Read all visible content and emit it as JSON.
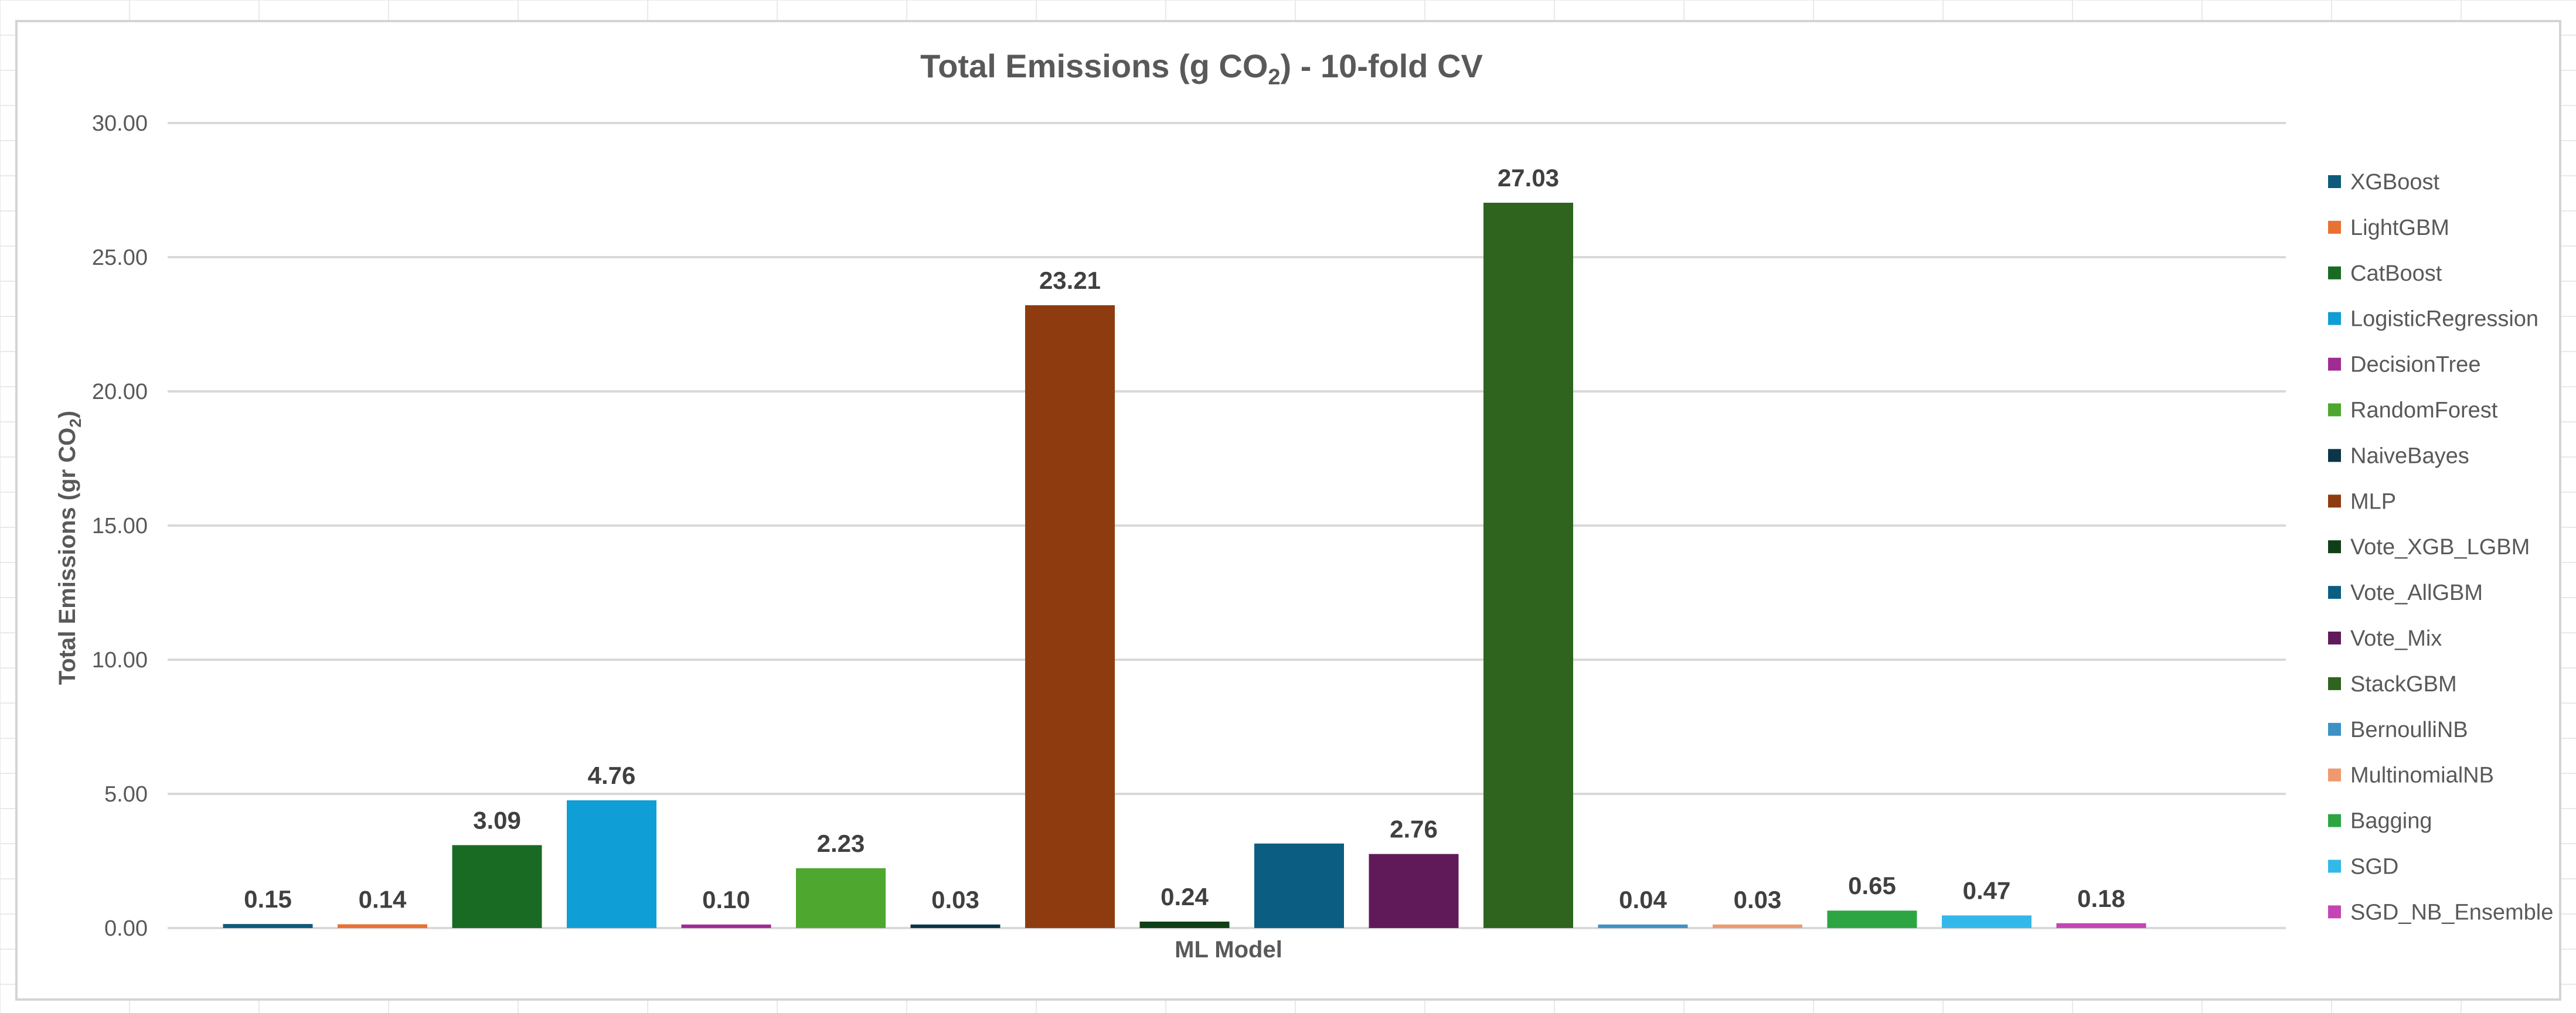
{
  "chart_data": {
    "type": "bar",
    "title": "Total Emissions (g CO",
    "title_subscript": "2",
    "title_suffix": ") - 10-fold CV",
    "xlabel": "ML Model",
    "ylabel": "Total Emissions (gr CO",
    "ylabel_subscript": "2",
    "ylabel_suffix": ")",
    "ylim": [
      0,
      30
    ],
    "yticks": [
      0,
      5,
      10,
      15,
      20,
      25,
      30
    ],
    "ytick_labels": [
      "0.00",
      "5.00",
      "10.00",
      "15.00",
      "20.00",
      "25.00",
      "30.00"
    ],
    "grid": true,
    "legend_position": "right",
    "series": [
      {
        "name": "XGBoost",
        "value": 0.15,
        "label": "0.15",
        "color": "#0f5a7c"
      },
      {
        "name": "LightGBM",
        "value": 0.14,
        "label": "0.14",
        "color": "#e97132"
      },
      {
        "name": "CatBoost",
        "value": 3.09,
        "label": "3.09",
        "color": "#196b24"
      },
      {
        "name": "LogisticRegression",
        "value": 4.76,
        "label": "4.76",
        "color": "#0f9ed5"
      },
      {
        "name": "DecisionTree",
        "value": 0.1,
        "label": "0.10",
        "color": "#a02b93"
      },
      {
        "name": "RandomForest",
        "value": 2.23,
        "label": "2.23",
        "color": "#4ea72e"
      },
      {
        "name": "NaiveBayes",
        "value": 0.03,
        "label": "0.03",
        "color": "#0b3548"
      },
      {
        "name": "MLP",
        "value": 23.21,
        "label": "23.21",
        "color": "#8f3b10"
      },
      {
        "name": "Vote_XGB_LGBM",
        "value": 0.24,
        "label": "0.24",
        "color": "#0f3f16"
      },
      {
        "name": "Vote_AllGBM",
        "value": 3.15,
        "label": "",
        "color": "#0b5e82"
      },
      {
        "name": "Vote_Mix",
        "value": 2.76,
        "label": "2.76",
        "color": "#611a59"
      },
      {
        "name": "StackGBM",
        "value": 27.03,
        "label": "27.03",
        "color": "#2e641d"
      },
      {
        "name": "BernoulliNB",
        "value": 0.04,
        "label": "0.04",
        "color": "#3e91c4"
      },
      {
        "name": "MultinomialNB",
        "value": 0.03,
        "label": "0.03",
        "color": "#ee9a6e"
      },
      {
        "name": "Bagging",
        "value": 0.65,
        "label": "0.65",
        "color": "#2ca542"
      },
      {
        "name": "SGD",
        "value": 0.47,
        "label": "0.47",
        "color": "#33b8ea"
      },
      {
        "name": "SGD_NB_Ensemble",
        "value": 0.18,
        "label": "0.18",
        "color": "#c544b5"
      }
    ]
  }
}
